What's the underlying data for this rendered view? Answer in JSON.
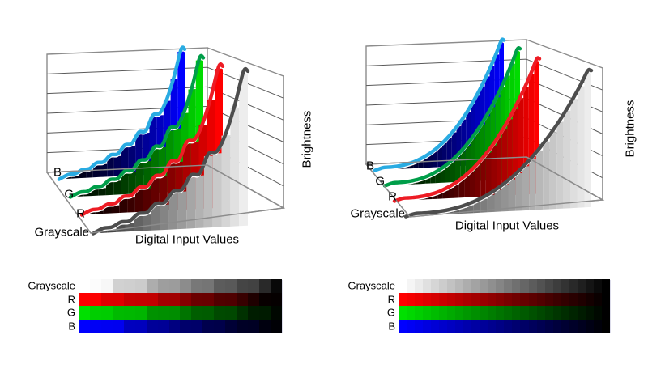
{
  "figure": {
    "background": "#FFFFFF"
  },
  "chart_data": [
    {
      "id": "left-3d-plot",
      "type": "area",
      "projection": "3d-ribbons",
      "curve_style": "jagged",
      "xlabel": "Digital Input Values",
      "ylabel": "Brightness",
      "x_range": [
        0,
        255
      ],
      "y_range_normalized": [
        0,
        1
      ],
      "grid": true,
      "depth_categories": [
        "B",
        "G",
        "R",
        "Grayscale"
      ],
      "series": [
        {
          "name": "B",
          "bar_color": "#0000FF",
          "curve_color": "#29ABE2"
        },
        {
          "name": "G",
          "bar_color": "#00DC00",
          "curve_color": "#009E49"
        },
        {
          "name": "R",
          "bar_color": "#FF0000",
          "curve_color": "#ED1C24"
        },
        {
          "name": "Grayscale",
          "bar_color": "#FFFFFF",
          "curve_color": "#4D4D4D"
        }
      ],
      "profile_normalized": [
        0.015,
        0.02,
        0.05,
        0.055,
        0.1,
        0.105,
        0.16,
        0.165,
        0.235,
        0.245,
        0.335,
        0.345,
        0.47,
        0.485,
        0.6,
        0.78,
        1.0
      ]
    },
    {
      "id": "right-3d-plot",
      "type": "area",
      "projection": "3d-ribbons",
      "curve_style": "smooth",
      "gamma": 2.5,
      "xlabel": "Digital Input Values",
      "ylabel": "Brightness",
      "x_range": [
        0,
        255
      ],
      "y_range_normalized": [
        0,
        1
      ],
      "grid": true,
      "depth_categories": [
        "B",
        "G",
        "R",
        "Grayscale"
      ],
      "series": [
        {
          "name": "B",
          "bar_color": "#0000FF",
          "curve_color": "#29ABE2"
        },
        {
          "name": "G",
          "bar_color": "#00DC00",
          "curve_color": "#009E49"
        },
        {
          "name": "R",
          "bar_color": "#FF0000",
          "curve_color": "#ED1C24"
        },
        {
          "name": "Grayscale",
          "bar_color": "#FFFFFF",
          "curve_color": "#4D4D4D"
        }
      ],
      "profile_normalized": [
        0.0,
        0.001,
        0.002,
        0.005,
        0.01,
        0.018,
        0.028,
        0.041,
        0.058,
        0.078,
        0.101,
        0.128,
        0.16,
        0.195,
        0.235,
        0.279,
        0.328,
        0.381,
        0.44,
        0.504,
        0.572,
        0.646,
        0.726,
        0.811,
        0.902,
        1.0
      ]
    },
    {
      "id": "left-ramp",
      "type": "heatmap",
      "description_style": "uneven-steps",
      "rows": [
        {
          "label": "Grayscale",
          "hue": "#FFFFFF",
          "steps": [
            1.0,
            0.99,
            0.97,
            0.82,
            0.81,
            0.8,
            0.68,
            0.62,
            0.61,
            0.55,
            0.47,
            0.46,
            0.36,
            0.35,
            0.27,
            0.26,
            0.16,
            0.03
          ]
        },
        {
          "label": "R",
          "hue": "#FF0000",
          "steps": [
            1.0,
            0.99,
            0.88,
            0.87,
            0.78,
            0.77,
            0.76,
            0.64,
            0.63,
            0.52,
            0.42,
            0.41,
            0.32,
            0.31,
            0.22,
            0.12,
            0.03,
            0.02
          ]
        },
        {
          "label": "G",
          "hue": "#00E000",
          "steps": [
            1.0,
            0.92,
            0.91,
            0.83,
            0.82,
            0.81,
            0.65,
            0.64,
            0.63,
            0.52,
            0.42,
            0.41,
            0.33,
            0.32,
            0.22,
            0.13,
            0.12,
            0.03
          ]
        },
        {
          "label": "B",
          "hue": "#0000FF",
          "steps": [
            1.0,
            0.96,
            0.95,
            0.94,
            0.75,
            0.74,
            0.6,
            0.59,
            0.5,
            0.42,
            0.41,
            0.3,
            0.29,
            0.21,
            0.15,
            0.14,
            0.06,
            0.02
          ]
        }
      ]
    },
    {
      "id": "right-ramp",
      "type": "heatmap",
      "description_style": "even-steps",
      "rows": [
        {
          "label": "Grayscale",
          "hue": "#FFFFFF",
          "steps": [
            1.0,
            0.96,
            0.92,
            0.88,
            0.84,
            0.8,
            0.76,
            0.72,
            0.68,
            0.64,
            0.6,
            0.56,
            0.52,
            0.48,
            0.44,
            0.4,
            0.36,
            0.32,
            0.28,
            0.24,
            0.2,
            0.16,
            0.12,
            0.08,
            0.04,
            0.0
          ]
        },
        {
          "label": "R",
          "hue": "#FF0000",
          "steps": [
            1.0,
            0.96,
            0.92,
            0.88,
            0.84,
            0.8,
            0.76,
            0.72,
            0.68,
            0.64,
            0.6,
            0.56,
            0.52,
            0.48,
            0.44,
            0.4,
            0.36,
            0.32,
            0.28,
            0.24,
            0.2,
            0.16,
            0.12,
            0.08,
            0.04,
            0.0
          ]
        },
        {
          "label": "G",
          "hue": "#00E000",
          "steps": [
            1.0,
            0.96,
            0.92,
            0.88,
            0.84,
            0.8,
            0.76,
            0.72,
            0.68,
            0.64,
            0.6,
            0.56,
            0.52,
            0.48,
            0.44,
            0.4,
            0.36,
            0.32,
            0.28,
            0.24,
            0.2,
            0.16,
            0.12,
            0.08,
            0.04,
            0.0
          ]
        },
        {
          "label": "B",
          "hue": "#0000FF",
          "steps": [
            1.0,
            0.96,
            0.92,
            0.88,
            0.84,
            0.8,
            0.76,
            0.72,
            0.68,
            0.64,
            0.6,
            0.56,
            0.52,
            0.48,
            0.44,
            0.4,
            0.36,
            0.32,
            0.28,
            0.24,
            0.2,
            0.16,
            0.12,
            0.08,
            0.04,
            0.0
          ]
        }
      ]
    }
  ]
}
